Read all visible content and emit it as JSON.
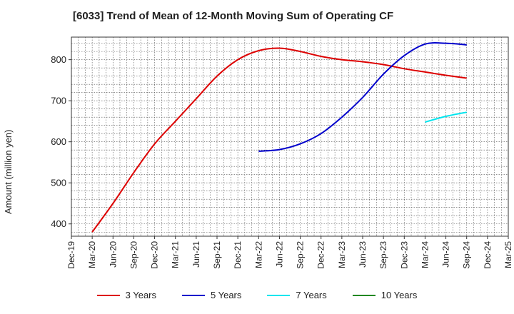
{
  "chart_data": {
    "type": "line",
    "title": "[6033]  Trend of Mean of 12-Month Moving Sum of Operating CF",
    "xlabel": "",
    "ylabel": "Amount (million yen)",
    "ylim": [
      370,
      855
    ],
    "yticks": [
      400,
      500,
      600,
      700,
      800
    ],
    "categories": [
      "Dec-19",
      "Mar-20",
      "Jun-20",
      "Sep-20",
      "Dec-20",
      "Mar-21",
      "Jun-21",
      "Sep-21",
      "Dec-21",
      "Mar-22",
      "Jun-22",
      "Sep-22",
      "Dec-22",
      "Mar-23",
      "Jun-23",
      "Sep-23",
      "Dec-23",
      "Mar-24",
      "Jun-24",
      "Sep-24",
      "Dec-24",
      "Mar-25"
    ],
    "grid": true,
    "legend_position": "bottom",
    "series": [
      {
        "name": "3 Years",
        "color": "#dd0000",
        "values": [
          null,
          380,
          450,
          525,
          595,
          650,
          705,
          760,
          800,
          822,
          828,
          820,
          808,
          800,
          795,
          788,
          778,
          770,
          762,
          755,
          null,
          null
        ]
      },
      {
        "name": "5 Years",
        "color": "#0000cc",
        "values": [
          null,
          null,
          null,
          null,
          null,
          null,
          null,
          null,
          null,
          577,
          581,
          595,
          620,
          660,
          708,
          765,
          810,
          838,
          840,
          836,
          null,
          null
        ]
      },
      {
        "name": "7 Years",
        "color": "#00e5ee",
        "values": [
          null,
          null,
          null,
          null,
          null,
          null,
          null,
          null,
          null,
          null,
          null,
          null,
          null,
          null,
          null,
          null,
          null,
          648,
          662,
          672,
          null,
          null
        ]
      },
      {
        "name": "10 Years",
        "color": "#228822",
        "values": [
          null,
          null,
          null,
          null,
          null,
          null,
          null,
          null,
          null,
          null,
          null,
          null,
          null,
          null,
          null,
          null,
          null,
          null,
          null,
          null,
          null,
          null
        ]
      }
    ]
  }
}
